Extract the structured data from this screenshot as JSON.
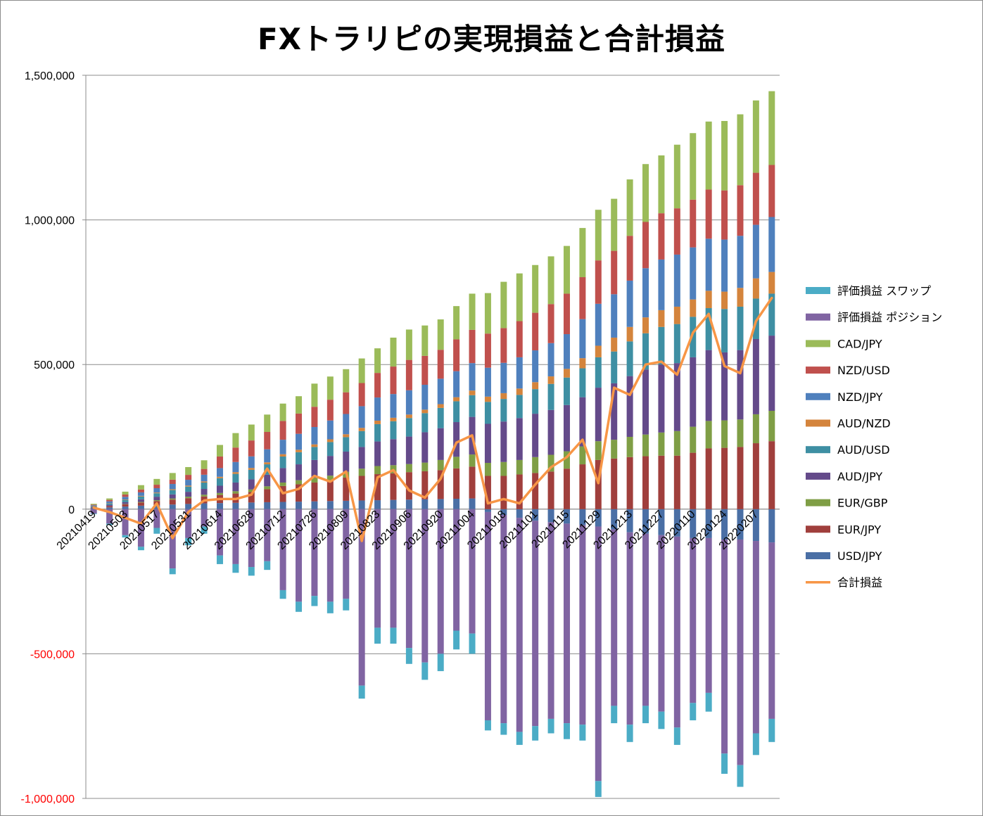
{
  "chart_data": {
    "type": "bar",
    "title": "FXトラリピの実現損益と合計損益",
    "ylim": [
      -1000000,
      1500000
    ],
    "yticks": [
      {
        "value": 1500000,
        "label": "1,500,000"
      },
      {
        "value": 1000000,
        "label": "1,000,000"
      },
      {
        "value": 500000,
        "label": "500,000"
      },
      {
        "value": 0,
        "label": "0"
      },
      {
        "value": -500000,
        "label": "-500,000"
      },
      {
        "value": -1000000,
        "label": "-1,000,000"
      }
    ],
    "negative_tick_color": "#ff0000",
    "grid": true,
    "legend_position": "right",
    "x": [
      "20210419",
      "20210426",
      "20210503",
      "20210510",
      "20210517",
      "20210524",
      "20210531",
      "20210607",
      "20210614",
      "20210621",
      "20210628",
      "20210705",
      "20210712",
      "20210719",
      "20210726",
      "20210802",
      "20210809",
      "20210816",
      "20210823",
      "20210830",
      "20210906",
      "20210913",
      "20210920",
      "20210927",
      "20211004",
      "20211011",
      "20211018",
      "20211025",
      "20211101",
      "20211108",
      "20211115",
      "20211122",
      "20211129",
      "20211206",
      "20211213",
      "20211220",
      "20211227",
      "20220103",
      "20220110",
      "20220117",
      "20220124",
      "20220131",
      "20220207",
      "20220214"
    ],
    "x_tick_labels": [
      "20210419",
      "20210503",
      "20210517",
      "20210531",
      "20210614",
      "20210628",
      "20210712",
      "20210726",
      "20210809",
      "20210823",
      "20210906",
      "20210920",
      "20211004",
      "20211018",
      "20211101",
      "20211115",
      "20211129",
      "20211213",
      "20211227",
      "20220110",
      "20220124",
      "20220207"
    ],
    "series": [
      {
        "name": "USD/JPY",
        "color": "#4a6fa5",
        "kind": "bar",
        "values": [
          3000,
          6000,
          9000,
          12000,
          14000,
          16000,
          18000,
          20000,
          21000,
          22000,
          23000,
          24000,
          25000,
          26000,
          27000,
          28000,
          29000,
          30000,
          31000,
          32000,
          33000,
          34000,
          35000,
          36000,
          37000,
          -10000,
          -20000,
          -30000,
          -40000,
          -45000,
          -50000,
          -55000,
          -60000,
          -70000,
          -80000,
          -85000,
          -90000,
          -95000,
          -100000,
          -100000,
          -105000,
          -105000,
          -110000,
          -115000
        ]
      },
      {
        "name": "EUR/JPY",
        "color": "#a03f3c",
        "kind": "bar",
        "values": [
          2000,
          5000,
          8000,
          11000,
          14000,
          17000,
          20000,
          24000,
          28000,
          32000,
          36000,
          45000,
          55000,
          60000,
          65000,
          70000,
          80000,
          85000,
          90000,
          92000,
          95000,
          97000,
          100000,
          105000,
          110000,
          115000,
          115000,
          120000,
          125000,
          130000,
          140000,
          155000,
          170000,
          175000,
          180000,
          183000,
          185000,
          185000,
          195000,
          210000,
          212000,
          215000,
          228000,
          235000
        ]
      },
      {
        "name": "EUR/GBP",
        "color": "#7f9e45",
        "kind": "bar",
        "values": [
          0,
          0,
          1000,
          2000,
          3000,
          4000,
          5000,
          6000,
          7000,
          8000,
          9000,
          10000,
          12000,
          14000,
          16000,
          18000,
          20000,
          25000,
          28000,
          28000,
          28000,
          30000,
          35000,
          40000,
          42000,
          45000,
          48000,
          50000,
          55000,
          58000,
          60000,
          62000,
          65000,
          65000,
          70000,
          75000,
          80000,
          85000,
          90000,
          95000,
          95000,
          95000,
          100000,
          105000
        ]
      },
      {
        "name": "AUD/JPY",
        "color": "#644a8a",
        "kind": "bar",
        "values": [
          2000,
          4000,
          6000,
          9000,
          12000,
          14000,
          17000,
          20000,
          25000,
          30000,
          35000,
          40000,
          50000,
          55000,
          62000,
          68000,
          70000,
          75000,
          85000,
          90000,
          95000,
          105000,
          110000,
          120000,
          130000,
          135000,
          140000,
          145000,
          150000,
          155000,
          160000,
          170000,
          185000,
          195000,
          210000,
          225000,
          235000,
          235000,
          240000,
          245000,
          235000,
          240000,
          260000,
          260000
        ]
      },
      {
        "name": "AUD/USD",
        "color": "#3e8fa3",
        "kind": "bar",
        "values": [
          3000,
          5000,
          8000,
          10000,
          12000,
          15000,
          18000,
          22000,
          26000,
          30000,
          33000,
          36000,
          40000,
          42000,
          45000,
          48000,
          50000,
          55000,
          60000,
          62000,
          64000,
          66000,
          70000,
          72000,
          75000,
          76000,
          78000,
          80000,
          85000,
          90000,
          95000,
          100000,
          105000,
          110000,
          120000,
          125000,
          130000,
          135000,
          140000,
          145000,
          150000,
          150000,
          140000,
          145000
        ]
      },
      {
        "name": "AUD/NZD",
        "color": "#d4843c",
        "kind": "bar",
        "values": [
          500,
          1000,
          1500,
          2000,
          2500,
          3000,
          3500,
          4000,
          5000,
          6000,
          6500,
          7000,
          8000,
          8500,
          9000,
          9500,
          10000,
          11000,
          12000,
          12000,
          12000,
          12000,
          13000,
          14000,
          16000,
          18000,
          20000,
          22000,
          24000,
          26000,
          30000,
          35000,
          40000,
          48000,
          50000,
          55000,
          58000,
          60000,
          60000,
          60000,
          60000,
          65000,
          70000,
          75000
        ]
      },
      {
        "name": "NZD/JPY",
        "color": "#4f80bd",
        "kind": "bar",
        "values": [
          3000,
          6000,
          9000,
          12000,
          15000,
          18000,
          20000,
          23000,
          30000,
          35000,
          40000,
          45000,
          50000,
          55000,
          60000,
          65000,
          70000,
          75000,
          80000,
          82000,
          84000,
          86000,
          88000,
          90000,
          95000,
          100000,
          105000,
          108000,
          110000,
          115000,
          120000,
          135000,
          145000,
          150000,
          160000,
          170000,
          175000,
          180000,
          180000,
          180000,
          180000,
          180000,
          185000,
          190000
        ]
      },
      {
        "name": "NZD/USD",
        "color": "#c0504d",
        "kind": "bar",
        "values": [
          2000,
          5000,
          8000,
          10000,
          12000,
          15000,
          17000,
          20000,
          40000,
          50000,
          55000,
          60000,
          65000,
          70000,
          70000,
          72000,
          75000,
          80000,
          85000,
          95000,
          105000,
          100000,
          100000,
          110000,
          115000,
          118000,
          120000,
          125000,
          130000,
          135000,
          140000,
          145000,
          150000,
          150000,
          155000,
          160000,
          160000,
          160000,
          165000,
          170000,
          170000,
          175000,
          180000,
          180000
        ]
      },
      {
        "name": "CAD/JPY",
        "color": "#9bbb59",
        "kind": "bar",
        "values": [
          3000,
          5000,
          10000,
          15000,
          20000,
          23000,
          27000,
          30000,
          40000,
          50000,
          55000,
          60000,
          60000,
          60000,
          80000,
          80000,
          80000,
          85000,
          85000,
          100000,
          105000,
          105000,
          105000,
          115000,
          125000,
          140000,
          160000,
          165000,
          165000,
          165000,
          165000,
          170000,
          175000,
          180000,
          195000,
          200000,
          200000,
          220000,
          230000,
          235000,
          240000,
          245000,
          250000,
          255000
        ]
      },
      {
        "name": "評価損益 ポジション",
        "color": "#8064a2",
        "kind": "bar",
        "values": [
          -15000,
          -50000,
          -90000,
          -130000,
          -65000,
          -205000,
          -100000,
          -60000,
          -160000,
          -190000,
          -200000,
          -180000,
          -280000,
          -320000,
          -300000,
          -320000,
          -310000,
          -610000,
          -410000,
          -410000,
          -480000,
          -530000,
          -500000,
          -420000,
          -430000,
          -720000,
          -720000,
          -740000,
          -710000,
          -680000,
          -690000,
          -690000,
          -880000,
          -610000,
          -665000,
          -595000,
          -610000,
          -660000,
          -570000,
          -535000,
          -740000,
          -780000,
          -665000,
          -610000
        ]
      },
      {
        "name": "評価損益 スワップ",
        "color": "#4bacc6",
        "kind": "bar",
        "values": [
          -2000,
          -5000,
          -8000,
          -12000,
          -20000,
          -20000,
          -25000,
          -25000,
          -30000,
          -30000,
          -30000,
          -30000,
          -30000,
          -35000,
          -35000,
          -40000,
          -40000,
          -45000,
          -55000,
          -55000,
          -55000,
          -60000,
          -60000,
          -65000,
          -70000,
          -35000,
          -40000,
          -45000,
          -50000,
          -50000,
          -55000,
          -55000,
          -55000,
          -60000,
          -60000,
          -60000,
          -60000,
          -60000,
          -60000,
          -65000,
          -70000,
          -75000,
          -75000,
          -80000
        ]
      },
      {
        "name": "合計損益",
        "color": "#f79646",
        "kind": "line",
        "values": [
          5000,
          -10000,
          -30000,
          -50000,
          20000,
          -100000,
          -10000,
          30000,
          35000,
          35000,
          50000,
          140000,
          55000,
          70000,
          115000,
          95000,
          130000,
          -110000,
          110000,
          135000,
          65000,
          40000,
          105000,
          230000,
          255000,
          20000,
          35000,
          20000,
          85000,
          145000,
          180000,
          240000,
          90000,
          420000,
          395000,
          500000,
          510000,
          465000,
          610000,
          675000,
          495000,
          470000,
          650000,
          730000
        ]
      }
    ]
  }
}
